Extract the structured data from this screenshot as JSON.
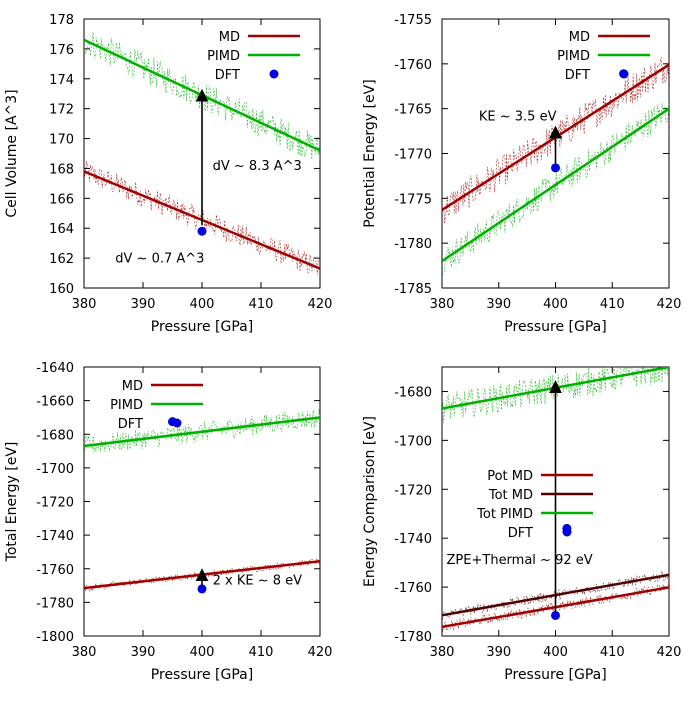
{
  "chart_data": [
    {
      "type": "line",
      "xlabel": "Pressure [GPa]",
      "ylabel": "Cell Volume [A^3]",
      "xlim": [
        380,
        420
      ],
      "ylim": [
        160,
        178
      ],
      "xticks": [
        380,
        390,
        400,
        410,
        420
      ],
      "yticks": [
        160,
        162,
        164,
        166,
        168,
        170,
        172,
        174,
        176,
        178
      ],
      "legend_position": "top-right",
      "series": [
        {
          "name": "MD",
          "kind": "line",
          "color": "#a00000",
          "noise": 0.8,
          "x": [
            380,
            420
          ],
          "y": [
            167.8,
            161.3
          ]
        },
        {
          "name": "PIMD",
          "kind": "line",
          "color": "#00b000",
          "noise": 1.0,
          "x": [
            380,
            420
          ],
          "y": [
            176.6,
            169.2
          ]
        },
        {
          "name": "DFT",
          "kind": "point",
          "color": "#0000e0",
          "x": [
            400
          ],
          "y": [
            163.8
          ]
        }
      ],
      "arrows": [
        {
          "x": 400,
          "y_from": 164.2,
          "y_to": 172.9
        }
      ],
      "annotations": [
        {
          "text": "dV ~ 8.3 A^3",
          "x": 401.8,
          "y": 167.9
        },
        {
          "text": "dV ~ 0.7 A^3",
          "x": 385.3,
          "y": 161.7
        }
      ]
    },
    {
      "type": "line",
      "xlabel": "Pressure [GPa]",
      "ylabel": "Potential Energy [eV]",
      "xlim": [
        380,
        420
      ],
      "ylim": [
        -1785,
        -1755
      ],
      "xticks": [
        380,
        390,
        400,
        410,
        420
      ],
      "yticks": [
        -1785,
        -1780,
        -1775,
        -1770,
        -1765,
        -1760,
        -1755
      ],
      "legend_position": "top-right",
      "series": [
        {
          "name": "MD",
          "kind": "line",
          "color": "#a00000",
          "noise": 1.8,
          "x": [
            380,
            420
          ],
          "y": [
            -1776.3,
            -1760.1
          ]
        },
        {
          "name": "PIMD",
          "kind": "line",
          "color": "#00b000",
          "noise": 1.6,
          "x": [
            380,
            420
          ],
          "y": [
            -1782.0,
            -1765.0
          ]
        },
        {
          "name": "DFT",
          "kind": "point",
          "color": "#0000e0",
          "x": [
            400,
            412
          ],
          "y": [
            -1771.6,
            -1761.1
          ]
        }
      ],
      "arrows": [
        {
          "x": 400,
          "y_from": -1771.2,
          "y_to": -1767.6
        }
      ],
      "annotations": [
        {
          "text": "KE ~ 3.5 eV",
          "x": 386.5,
          "y": -1766.3
        }
      ]
    },
    {
      "type": "line",
      "xlabel": "Pressure [GPa]",
      "ylabel": "Total Energy [eV]",
      "xlim": [
        380,
        420
      ],
      "ylim": [
        -1800,
        -1640
      ],
      "xticks": [
        380,
        390,
        400,
        410,
        420
      ],
      "yticks": [
        -1800,
        -1780,
        -1760,
        -1740,
        -1720,
        -1700,
        -1680,
        -1660,
        -1640
      ],
      "legend_position": "top-left",
      "series": [
        {
          "name": "MD",
          "kind": "line",
          "color": "#a00000",
          "noise": 2.0,
          "x": [
            380,
            420
          ],
          "y": [
            -1771.5,
            -1755.5
          ]
        },
        {
          "name": "PIMD",
          "kind": "line",
          "color": "#00b000",
          "noise": 6.0,
          "x": [
            380,
            420
          ],
          "y": [
            -1687.0,
            -1670.0
          ]
        },
        {
          "name": "DFT",
          "kind": "point",
          "color": "#0000e0",
          "x": [
            395,
            400
          ],
          "y": [
            -1672.5,
            -1772.0
          ]
        }
      ],
      "arrows": [
        {
          "x": 400,
          "y_from": -1771.0,
          "y_to": -1763.5
        }
      ],
      "annotations": [
        {
          "text": "2 x KE ~ 8 eV",
          "x": 401.8,
          "y": -1769.5
        }
      ]
    },
    {
      "type": "line",
      "xlabel": "Pressure [GPa]",
      "ylabel": "Energy Comparison [eV]",
      "xlim": [
        380,
        420
      ],
      "ylim": [
        -1780,
        -1670
      ],
      "xticks": [
        380,
        390,
        400,
        410,
        420
      ],
      "yticks": [
        -1780,
        -1760,
        -1740,
        -1720,
        -1700,
        -1680
      ],
      "legend_position": "center-right",
      "series": [
        {
          "name": "Pot MD",
          "kind": "line",
          "color": "#a00000",
          "noise": 2.0,
          "x": [
            380,
            420
          ],
          "y": [
            -1776.3,
            -1760.1
          ]
        },
        {
          "name": "Tot MD",
          "kind": "line",
          "color": "#500000",
          "noise": 2.0,
          "x": [
            380,
            420
          ],
          "y": [
            -1771.5,
            -1755.0
          ]
        },
        {
          "name": "Tot PIMD",
          "kind": "line",
          "color": "#00b000",
          "noise": 6.0,
          "x": [
            380,
            420
          ],
          "y": [
            -1687.0,
            -1670.0
          ]
        },
        {
          "name": "DFT",
          "kind": "point",
          "color": "#0000e0",
          "x": [
            400,
            402
          ],
          "y": [
            -1771.6,
            -1736.0
          ]
        }
      ],
      "arrows": [
        {
          "x": 400,
          "y_from": -1770.5,
          "y_to": -1678.0
        }
      ],
      "annotations": [
        {
          "text": "ZPE+Thermal ~ 92 eV",
          "x": 380.8,
          "y": -1750.5
        }
      ]
    }
  ]
}
